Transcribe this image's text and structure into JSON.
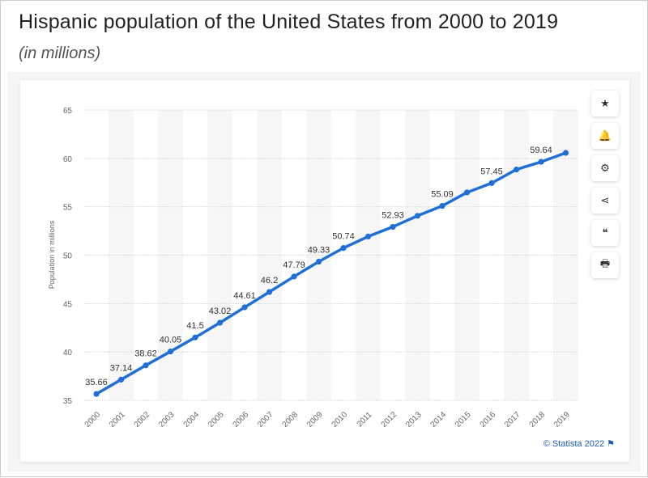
{
  "header": {
    "title": "Hispanic population of the United States from 2000 to 2019",
    "subtitle": "(in millions)"
  },
  "toolbar": [
    {
      "icon": "star-icon",
      "glyph": "★"
    },
    {
      "icon": "bell-icon",
      "glyph": "🔔"
    },
    {
      "icon": "gear-icon",
      "glyph": "⚙"
    },
    {
      "icon": "share-icon",
      "glyph": "⋖"
    },
    {
      "icon": "quote-icon",
      "glyph": "❝"
    },
    {
      "icon": "print-icon",
      "glyph": "🖶"
    }
  ],
  "credit": "© Statista 2022 ⚑",
  "chart_data": {
    "type": "line",
    "title": "Hispanic population of the United States from 2000 to 2019",
    "ylabel": "Population in millions",
    "xlabel": "",
    "ylim": [
      35,
      65
    ],
    "yticks": [
      35,
      40,
      45,
      50,
      55,
      60,
      65
    ],
    "grid": true,
    "color": "#1f6fd6",
    "categories": [
      "2000",
      "2001",
      "2002",
      "2003",
      "2004",
      "2005",
      "2006",
      "2007",
      "2008",
      "2009",
      "2010",
      "2011",
      "2012",
      "2013",
      "2014",
      "2015",
      "2016",
      "2017",
      "2018",
      "2019"
    ],
    "values": [
      35.66,
      37.14,
      38.62,
      40.05,
      41.5,
      43.02,
      44.61,
      46.2,
      47.79,
      49.33,
      50.74,
      51.93,
      52.93,
      54.07,
      55.09,
      56.48,
      57.45,
      58.85,
      59.64,
      60.57
    ],
    "labels": [
      "35.66",
      "37.14",
      "38.62",
      "40.05",
      "41.5",
      "43.02",
      "44.61",
      "46.2",
      "47.79",
      "49.33",
      "50.74",
      "",
      "52.93",
      "",
      "55.09",
      "",
      "57.45",
      "",
      "59.64",
      ""
    ]
  }
}
